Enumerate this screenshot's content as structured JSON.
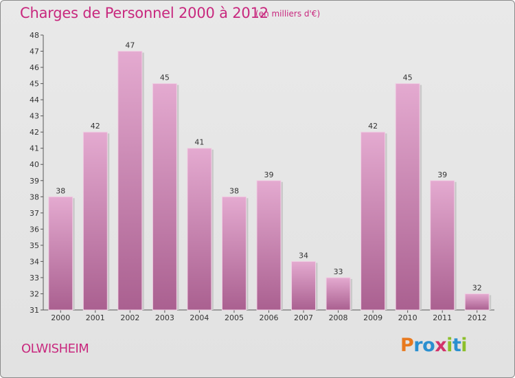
{
  "header": {
    "title": "Charges de Personnel 2000 à 2012",
    "unit": "(en milliers d'€)"
  },
  "commune": "OLWISHEIM",
  "logo": {
    "letters": [
      "P",
      "r",
      "o",
      "x",
      "i",
      "t",
      "i"
    ],
    "colors": [
      "#e8791e",
      "#2a8fd0",
      "#2a8fd0",
      "#d2336b",
      "#8cbf2a",
      "#2a8fd0",
      "#8cbf2a"
    ]
  },
  "chart_data": {
    "type": "bar",
    "title": "Charges de Personnel 2000 à 2012",
    "categories": [
      "2000",
      "2001",
      "2002",
      "2003",
      "2004",
      "2005",
      "2006",
      "2007",
      "2008",
      "2009",
      "2010",
      "2011",
      "2012"
    ],
    "values": [
      38,
      42,
      47,
      45,
      41,
      38,
      39,
      34,
      33,
      42,
      45,
      39,
      32
    ],
    "ylim": [
      31,
      48
    ],
    "yticks": [
      31,
      32,
      33,
      34,
      35,
      36,
      37,
      38,
      39,
      40,
      41,
      42,
      43,
      44,
      45,
      46,
      47,
      48
    ],
    "grid": false,
    "bar_color": "#c67aa6"
  }
}
